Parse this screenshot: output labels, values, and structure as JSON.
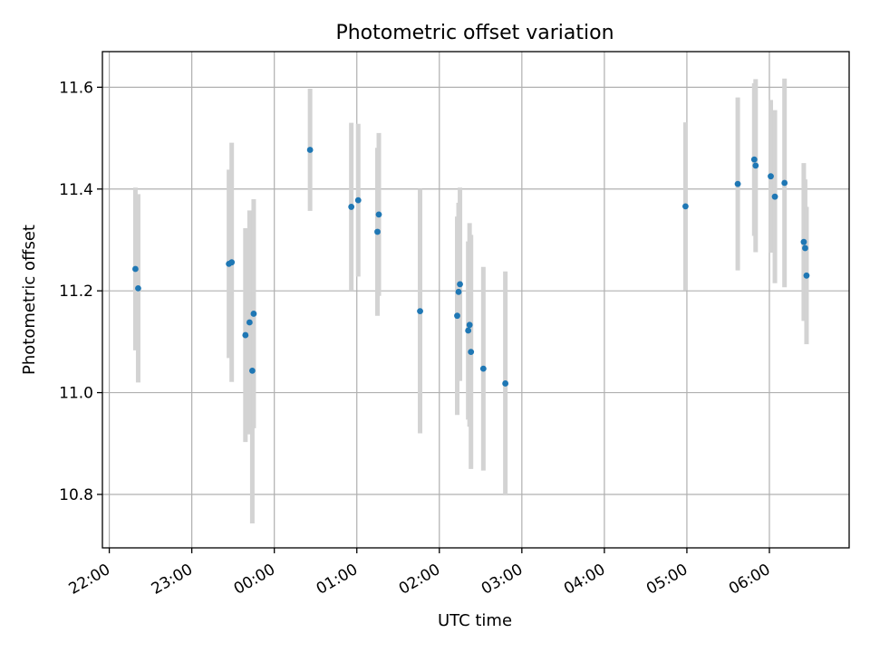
{
  "chart_data": {
    "type": "scatter",
    "title": "Photometric offset variation",
    "xlabel": "UTC time",
    "ylabel": "Photometric offset",
    "x_unit": "UTC time of day (HH:MM), spanning midnight",
    "xlim": [
      "21:55",
      "06:58"
    ],
    "ylim": [
      10.695,
      11.67
    ],
    "x_ticks": [
      "22:00",
      "23:00",
      "00:00",
      "01:00",
      "02:00",
      "03:00",
      "04:00",
      "05:00",
      "06:00"
    ],
    "y_ticks": [
      10.8,
      11.0,
      11.2,
      11.4,
      11.6
    ],
    "y_tick_labels": [
      "10.8",
      "11.0",
      "11.2",
      "11.4",
      "11.6"
    ],
    "grid": true,
    "marker_color": "#1f77b4",
    "errorbar_color": "#d3d3d3",
    "points": [
      {
        "x": "22:19",
        "y": 11.243,
        "err": 0.16
      },
      {
        "x": "22:21",
        "y": 11.205,
        "err": 0.185
      },
      {
        "x": "23:27",
        "y": 11.253,
        "err": 0.185
      },
      {
        "x": "23:29",
        "y": 11.256,
        "err": 0.235
      },
      {
        "x": "23:39",
        "y": 11.113,
        "err": 0.21
      },
      {
        "x": "23:42",
        "y": 11.138,
        "err": 0.22
      },
      {
        "x": "23:44",
        "y": 11.043,
        "err": 0.3
      },
      {
        "x": "23:45",
        "y": 11.155,
        "err": 0.225
      },
      {
        "x": "00:26",
        "y": 11.477,
        "err": 0.12
      },
      {
        "x": "00:56",
        "y": 11.365,
        "err": 0.165
      },
      {
        "x": "01:01",
        "y": 11.378,
        "err": 0.15
      },
      {
        "x": "01:15",
        "y": 11.316,
        "err": 0.165
      },
      {
        "x": "01:16",
        "y": 11.35,
        "err": 0.16
      },
      {
        "x": "01:46",
        "y": 11.16,
        "err": 0.24
      },
      {
        "x": "02:13",
        "y": 11.151,
        "err": 0.195
      },
      {
        "x": "02:14",
        "y": 11.198,
        "err": 0.175
      },
      {
        "x": "02:15",
        "y": 11.213,
        "err": 0.19
      },
      {
        "x": "02:21",
        "y": 11.122,
        "err": 0.175
      },
      {
        "x": "02:22",
        "y": 11.133,
        "err": 0.2
      },
      {
        "x": "02:23",
        "y": 11.08,
        "err": 0.23
      },
      {
        "x": "02:32",
        "y": 11.047,
        "err": 0.2
      },
      {
        "x": "02:48",
        "y": 11.018,
        "err": 0.22
      },
      {
        "x": "04:59",
        "y": 11.366,
        "err": 0.165
      },
      {
        "x": "05:37",
        "y": 11.41,
        "err": 0.17
      },
      {
        "x": "05:49",
        "y": 11.458,
        "err": 0.15
      },
      {
        "x": "05:50",
        "y": 11.446,
        "err": 0.17
      },
      {
        "x": "06:01",
        "y": 11.425,
        "err": 0.15
      },
      {
        "x": "06:04",
        "y": 11.385,
        "err": 0.17
      },
      {
        "x": "06:11",
        "y": 11.412,
        "err": 0.205
      },
      {
        "x": "06:25",
        "y": 11.296,
        "err": 0.155
      },
      {
        "x": "06:26",
        "y": 11.284,
        "err": 0.135
      },
      {
        "x": "06:27",
        "y": 11.23,
        "err": 0.135
      }
    ]
  }
}
